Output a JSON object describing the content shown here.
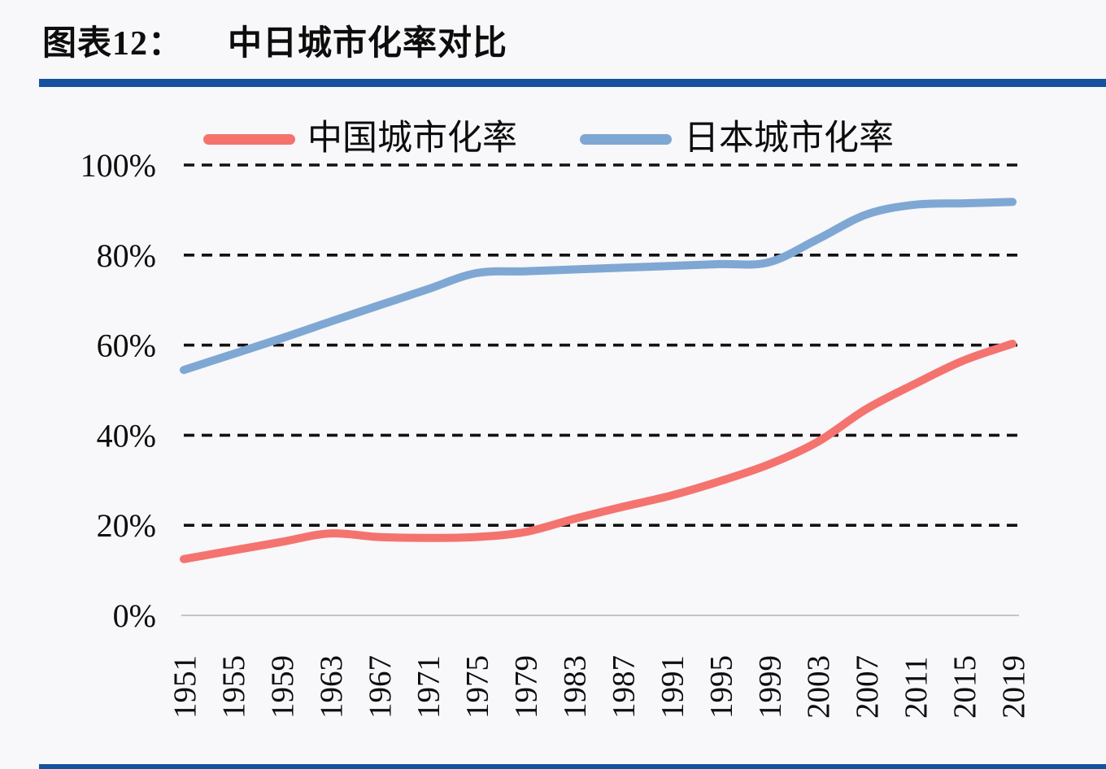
{
  "page": {
    "accent_bar_color": "#14529E",
    "background_color": "#F8F7F9"
  },
  "header": {
    "chart_label": "图表12：",
    "chart_title": "中日城市化率对比"
  },
  "chart_data": {
    "type": "line",
    "title": "中日城市化率对比",
    "categories": [
      "1951",
      "1955",
      "1959",
      "1963",
      "1967",
      "1971",
      "1975",
      "1979",
      "1983",
      "1987",
      "1991",
      "1995",
      "1999",
      "2003",
      "2007",
      "2011",
      "2015",
      "2019"
    ],
    "series": [
      {
        "name": "中国城市化率",
        "color": "#F4736F",
        "values": [
          12.5,
          14.4,
          16.3,
          18.2,
          17.4,
          17.2,
          17.4,
          18.5,
          21.4,
          24.1,
          26.6,
          29.8,
          33.5,
          38.5,
          45.8,
          51.4,
          56.6,
          60.3
        ]
      },
      {
        "name": "日本城市化率",
        "color": "#7FA7D4",
        "values": [
          54.5,
          58.0,
          61.5,
          65.2,
          68.8,
          72.4,
          76.0,
          76.4,
          76.8,
          77.2,
          77.6,
          78.0,
          78.4,
          83.5,
          89.0,
          91.2,
          91.5,
          91.8
        ]
      }
    ],
    "xlabel": "",
    "ylabel": "",
    "ylim": [
      0,
      100
    ],
    "y_tick_values": [
      100,
      80,
      60,
      40,
      20,
      0
    ],
    "y_tick_labels": [
      "100%",
      "80%",
      "60%",
      "40%",
      "20%",
      "0%"
    ],
    "grid": "horizontal-dashed",
    "grid_color": "#111111",
    "zero_axis_color": "#C6C4C6",
    "label_color": "#0d0d0d",
    "legend_position": "top",
    "x_tick_rotation_degrees": 90
  }
}
